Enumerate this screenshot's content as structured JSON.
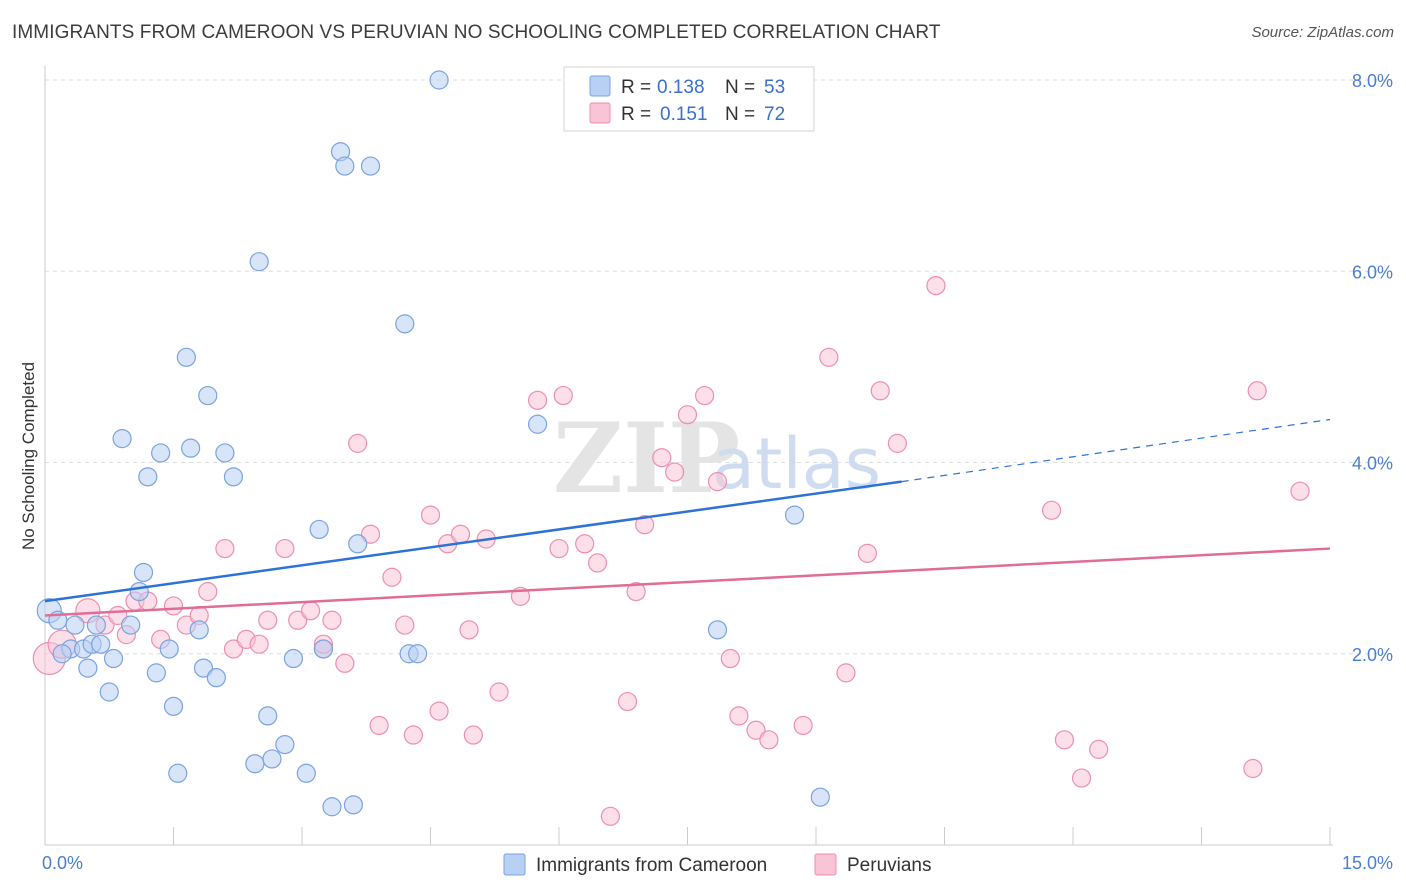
{
  "title": "IMMIGRANTS FROM CAMEROON VS PERUVIAN NO SCHOOLING COMPLETED CORRELATION CHART",
  "source": "Source: ZipAtlas.com",
  "watermark": {
    "zip": "ZIP",
    "atlas": "atlas"
  },
  "colors": {
    "blue_fill": "#b8d0f4",
    "blue_stroke": "#7aa3e0",
    "blue_line": "#2f72d6",
    "pink_fill": "#f9c4d6",
    "pink_stroke": "#ec8fb0",
    "pink_line": "#e06c98",
    "grid": "#dddddd",
    "axis_text": "#4a7fd0"
  },
  "legend": {
    "r_label": "R =",
    "n_label": "N =",
    "rows": [
      {
        "r": "0.138",
        "n": "53"
      },
      {
        "r": "0.151",
        "n": "72"
      }
    ]
  },
  "chart_data": {
    "type": "scatter",
    "xlabel": "",
    "ylabel": "No Schooling Completed",
    "xlim": [
      0,
      15
    ],
    "ylim": [
      0,
      8.0
    ],
    "x_tick_labels": [
      "0.0%",
      "15.0%"
    ],
    "y_ticks": [
      2.0,
      4.0,
      6.0,
      8.0
    ],
    "y_tick_labels": [
      "2.0%",
      "4.0%",
      "6.0%",
      "8.0%"
    ],
    "grid": true,
    "legend_position": "bottom-center",
    "series": [
      {
        "name": "Immigrants from Cameroon",
        "color": "blue",
        "trend": {
          "x_solid": [
            0,
            10.0
          ],
          "y_solid": [
            2.55,
            3.8
          ],
          "x_dash": [
            10.0,
            15.0
          ],
          "y_dash": [
            3.8,
            4.45
          ]
        },
        "points": [
          [
            0.05,
            2.45,
            12
          ],
          [
            0.15,
            2.35,
            9
          ],
          [
            0.3,
            2.05,
            9
          ],
          [
            0.35,
            2.3,
            9
          ],
          [
            0.45,
            2.05,
            9
          ],
          [
            0.5,
            1.85,
            9
          ],
          [
            0.55,
            2.1,
            9
          ],
          [
            0.6,
            2.3,
            9
          ],
          [
            0.75,
            1.6,
            9
          ],
          [
            0.8,
            1.95,
            9
          ],
          [
            0.9,
            4.25,
            9
          ],
          [
            1.0,
            2.3,
            9
          ],
          [
            1.1,
            2.65,
            9
          ],
          [
            1.15,
            2.85,
            9
          ],
          [
            1.2,
            3.85,
            9
          ],
          [
            1.3,
            1.8,
            9
          ],
          [
            1.35,
            4.1,
            9
          ],
          [
            1.45,
            2.05,
            9
          ],
          [
            1.5,
            1.45,
            9
          ],
          [
            1.55,
            0.75,
            9
          ],
          [
            1.65,
            5.1,
            9
          ],
          [
            1.7,
            4.15,
            9
          ],
          [
            1.8,
            2.25,
            9
          ],
          [
            1.85,
            1.85,
            9
          ],
          [
            1.9,
            4.7,
            9
          ],
          [
            2.0,
            1.75,
            9
          ],
          [
            2.1,
            4.1,
            9
          ],
          [
            2.2,
            3.85,
            9
          ],
          [
            2.45,
            0.85,
            9
          ],
          [
            2.5,
            6.1,
            9
          ],
          [
            2.6,
            1.35,
            9
          ],
          [
            2.65,
            0.9,
            9
          ],
          [
            2.8,
            1.05,
            9
          ],
          [
            2.9,
            1.95,
            9
          ],
          [
            3.05,
            0.75,
            9
          ],
          [
            3.2,
            3.3,
            9
          ],
          [
            3.25,
            2.05,
            9
          ],
          [
            3.35,
            0.4,
            9
          ],
          [
            3.45,
            7.25,
            9
          ],
          [
            3.5,
            7.1,
            9
          ],
          [
            3.6,
            0.42,
            9
          ],
          [
            3.65,
            3.15,
            9
          ],
          [
            3.8,
            7.1,
            9
          ],
          [
            4.2,
            5.45,
            9
          ],
          [
            4.25,
            2.0,
            9
          ],
          [
            4.35,
            2.0,
            9
          ],
          [
            4.6,
            8.0,
            9
          ],
          [
            5.75,
            4.4,
            9
          ],
          [
            7.85,
            2.25,
            9
          ],
          [
            8.75,
            3.45,
            9
          ],
          [
            9.05,
            0.5,
            9
          ],
          [
            0.2,
            2.0,
            9
          ],
          [
            0.65,
            2.1,
            9
          ]
        ]
      },
      {
        "name": "Peruvians",
        "color": "pink",
        "trend": {
          "x_solid": [
            0,
            15.0
          ],
          "y_solid": [
            2.4,
            3.1
          ]
        },
        "points": [
          [
            0.05,
            1.95,
            16
          ],
          [
            0.2,
            2.1,
            14
          ],
          [
            0.5,
            2.45,
            12
          ],
          [
            0.7,
            2.3,
            9
          ],
          [
            0.85,
            2.4,
            9
          ],
          [
            0.95,
            2.2,
            9
          ],
          [
            1.05,
            2.55,
            9
          ],
          [
            1.2,
            2.55,
            9
          ],
          [
            1.35,
            2.15,
            9
          ],
          [
            1.5,
            2.5,
            9
          ],
          [
            1.65,
            2.3,
            9
          ],
          [
            1.8,
            2.4,
            9
          ],
          [
            1.9,
            2.65,
            9
          ],
          [
            2.1,
            3.1,
            9
          ],
          [
            2.2,
            2.05,
            9
          ],
          [
            2.35,
            2.15,
            9
          ],
          [
            2.5,
            2.1,
            9
          ],
          [
            2.6,
            2.35,
            9
          ],
          [
            2.8,
            3.1,
            9
          ],
          [
            2.95,
            2.35,
            9
          ],
          [
            3.1,
            2.45,
            9
          ],
          [
            3.25,
            2.05,
            9
          ],
          [
            3.35,
            2.35,
            9
          ],
          [
            3.5,
            1.9,
            9
          ],
          [
            3.65,
            4.2,
            9
          ],
          [
            3.8,
            3.25,
            9
          ],
          [
            3.9,
            1.25,
            9
          ],
          [
            4.05,
            2.8,
            9
          ],
          [
            4.2,
            2.3,
            9
          ],
          [
            4.3,
            1.15,
            9
          ],
          [
            4.5,
            3.45,
            9
          ],
          [
            4.6,
            1.4,
            9
          ],
          [
            4.7,
            3.15,
            9
          ],
          [
            4.85,
            3.25,
            9
          ],
          [
            4.95,
            2.25,
            9
          ],
          [
            5.0,
            1.15,
            9
          ],
          [
            5.15,
            3.2,
            9
          ],
          [
            5.3,
            1.6,
            9
          ],
          [
            5.55,
            2.6,
            9
          ],
          [
            5.75,
            4.65,
            9
          ],
          [
            6.0,
            3.1,
            9
          ],
          [
            6.05,
            4.7,
            9
          ],
          [
            6.3,
            3.15,
            9
          ],
          [
            6.45,
            2.95,
            9
          ],
          [
            6.6,
            0.3,
            9
          ],
          [
            6.8,
            1.5,
            9
          ],
          [
            6.9,
            2.65,
            9
          ],
          [
            7.0,
            3.35,
            9
          ],
          [
            7.2,
            4.05,
            9
          ],
          [
            7.35,
            3.9,
            9
          ],
          [
            7.5,
            4.5,
            9
          ],
          [
            7.7,
            4.7,
            9
          ],
          [
            7.85,
            3.8,
            9
          ],
          [
            8.0,
            1.95,
            9
          ],
          [
            8.1,
            1.35,
            9
          ],
          [
            8.3,
            1.2,
            9
          ],
          [
            8.45,
            1.1,
            9
          ],
          [
            8.85,
            1.25,
            9
          ],
          [
            9.15,
            5.1,
            9
          ],
          [
            9.35,
            1.8,
            9
          ],
          [
            9.6,
            3.05,
            9
          ],
          [
            9.75,
            4.75,
            9
          ],
          [
            9.95,
            4.2,
            9
          ],
          [
            10.4,
            5.85,
            9
          ],
          [
            11.75,
            3.5,
            9
          ],
          [
            11.9,
            1.1,
            9
          ],
          [
            12.1,
            0.7,
            9
          ],
          [
            12.3,
            1.0,
            9
          ],
          [
            14.1,
            0.8,
            9
          ],
          [
            14.15,
            4.75,
            9
          ],
          [
            14.65,
            3.7,
            9
          ],
          [
            3.25,
            2.1,
            9
          ]
        ]
      }
    ]
  },
  "bottom_legend": {
    "items": [
      "Immigrants from Cameroon",
      "Peruvians"
    ]
  }
}
